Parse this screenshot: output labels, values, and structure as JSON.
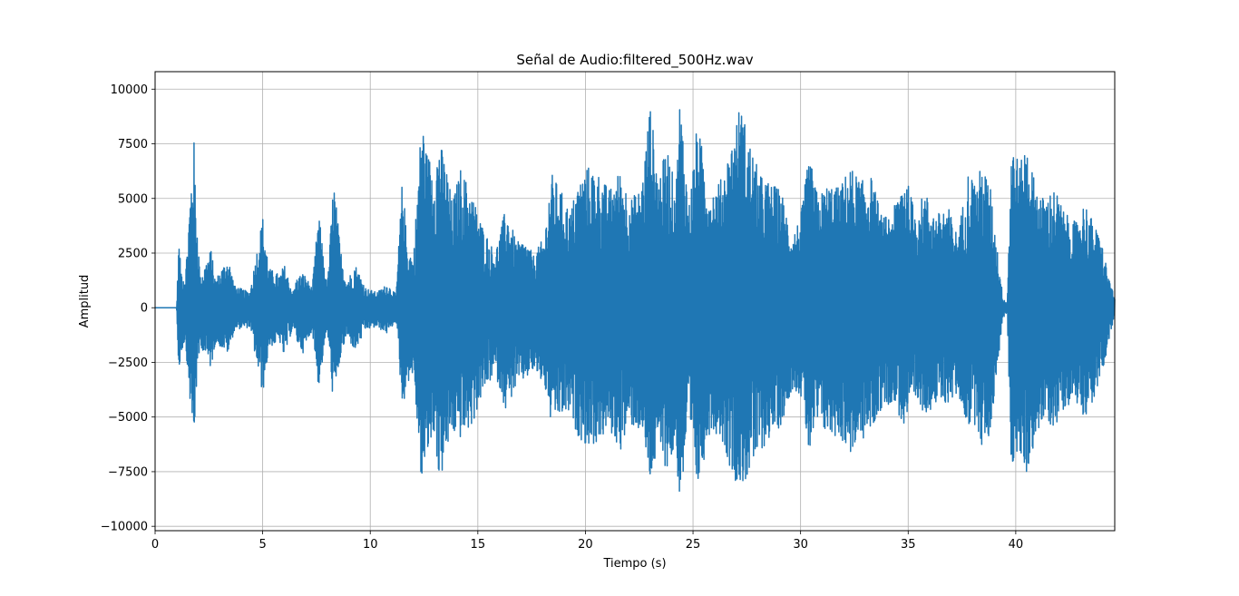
{
  "chart_data": {
    "type": "line",
    "title": "Señal de Audio:filtered_500Hz.wav",
    "xlabel": "Tiempo (s)",
    "ylabel": "Amplitud",
    "xlim": [
      0,
      44.6
    ],
    "ylim": [
      -10200,
      10800
    ],
    "grid": true,
    "x_ticks": [
      {
        "value": 0,
        "label": "0"
      },
      {
        "value": 5,
        "label": "5"
      },
      {
        "value": 10,
        "label": "10"
      },
      {
        "value": 15,
        "label": "15"
      },
      {
        "value": 20,
        "label": "20"
      },
      {
        "value": 25,
        "label": "25"
      },
      {
        "value": 30,
        "label": "30"
      },
      {
        "value": 35,
        "label": "35"
      },
      {
        "value": 40,
        "label": "40"
      }
    ],
    "y_ticks": [
      {
        "value": 10000,
        "label": "10000"
      },
      {
        "value": 7500,
        "label": "7500"
      },
      {
        "value": 5000,
        "label": "5000"
      },
      {
        "value": 2500,
        "label": "2500"
      },
      {
        "value": 0,
        "label": "0"
      },
      {
        "value": -2500,
        "label": "−2500"
      },
      {
        "value": -5000,
        "label": "−5000"
      },
      {
        "value": -7500,
        "label": "−7500"
      },
      {
        "value": -10000,
        "label": "−10000"
      }
    ],
    "series": [
      {
        "color": "#1f77b4",
        "envelope": {
          "x": [
            0.0,
            1.0,
            1.1,
            1.2,
            1.4,
            1.8,
            1.9,
            2.1,
            2.6,
            2.8,
            3.4,
            3.7,
            4.4,
            5.0,
            5.3,
            5.8,
            6.0,
            6.4,
            6.6,
            6.9,
            7.3,
            7.6,
            8.0,
            8.3,
            8.6,
            8.9,
            9.3,
            9.8,
            10.3,
            10.8,
            11.2,
            11.5,
            11.7,
            12.0,
            12.4,
            12.6,
            13.0,
            13.2,
            13.6,
            13.8,
            14.2,
            14.7,
            15.2,
            15.8,
            16.3,
            16.8,
            17.2,
            17.6,
            18.1,
            18.4,
            18.8,
            19.3,
            19.6,
            20.1,
            20.6,
            21.1,
            21.6,
            22.1,
            22.6,
            23.0,
            23.4,
            23.8,
            24.2,
            24.4,
            24.8,
            25.2,
            25.8,
            26.3,
            26.8,
            27.2,
            27.6,
            28.1,
            28.6,
            29.1,
            29.6,
            30.0,
            30.4,
            30.8,
            31.3,
            31.8,
            32.3,
            32.8,
            33.3,
            33.8,
            34.3,
            34.8,
            35.3,
            35.8,
            36.3,
            36.8,
            37.3,
            37.8,
            38.2,
            38.4,
            38.8,
            39.4,
            39.6,
            39.8,
            40.2,
            40.5,
            40.9,
            41.3,
            41.8,
            42.3,
            42.8,
            43.2,
            43.6,
            44.0,
            44.3,
            44.6
          ],
          "upper": [
            0,
            0,
            3100,
            1800,
            1400,
            7900,
            4800,
            1400,
            2700,
            1300,
            2300,
            1000,
            700,
            4200,
            1800,
            1500,
            2000,
            700,
            1400,
            1600,
            900,
            4400,
            900,
            6000,
            2800,
            1200,
            2000,
            900,
            700,
            1100,
            600,
            6100,
            3000,
            2200,
            9000,
            7200,
            6500,
            7800,
            6200,
            4800,
            6400,
            5300,
            3800,
            2500,
            4600,
            3000,
            3100,
            2400,
            3300,
            6200,
            5500,
            4400,
            5600,
            6500,
            6200,
            5400,
            6300,
            5000,
            5500,
            9400,
            6000,
            7400,
            5400,
            9900,
            4600,
            8500,
            5300,
            5900,
            7600,
            9400,
            7700,
            6100,
            5700,
            5400,
            3300,
            4200,
            7000,
            5100,
            5700,
            5500,
            6500,
            5800,
            6000,
            4100,
            4400,
            6400,
            4500,
            5300,
            4200,
            4800,
            3300,
            6300,
            5700,
            6600,
            5700,
            500,
            200,
            7800,
            6500,
            7700,
            5700,
            5000,
            5500,
            4300,
            3900,
            4900,
            3900,
            3000,
            1500,
            400
          ],
          "lower": [
            0,
            0,
            -3300,
            -2100,
            -1500,
            -6500,
            -4000,
            -1700,
            -2800,
            -1600,
            -2100,
            -1000,
            -900,
            -4000,
            -1800,
            -1600,
            -2300,
            -900,
            -1600,
            -2100,
            -1000,
            -3700,
            -1000,
            -4600,
            -2400,
            -1300,
            -2000,
            -1000,
            -900,
            -1200,
            -600,
            -4700,
            -3500,
            -3000,
            -8300,
            -7000,
            -5700,
            -8200,
            -6500,
            -5800,
            -6000,
            -5500,
            -4000,
            -3000,
            -4700,
            -3600,
            -3300,
            -2900,
            -3600,
            -5300,
            -5000,
            -4900,
            -5800,
            -6400,
            -6200,
            -5600,
            -6600,
            -5400,
            -5700,
            -8000,
            -6700,
            -7400,
            -6600,
            -9200,
            -5500,
            -8400,
            -5600,
            -5900,
            -7600,
            -8300,
            -7700,
            -6700,
            -5900,
            -5400,
            -3700,
            -4000,
            -6800,
            -5400,
            -5900,
            -5900,
            -6700,
            -6200,
            -5600,
            -4600,
            -4300,
            -5500,
            -4500,
            -4800,
            -4500,
            -4400,
            -4000,
            -5500,
            -5300,
            -6400,
            -5900,
            -500,
            -200,
            -7500,
            -6800,
            -7700,
            -6000,
            -5200,
            -5500,
            -4500,
            -4300,
            -5000,
            -4300,
            -3200,
            -1600,
            -400
          ]
        }
      }
    ]
  }
}
